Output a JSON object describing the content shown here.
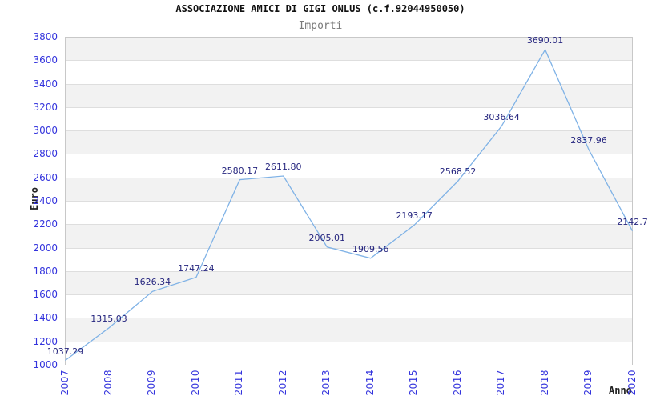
{
  "chart_data": {
    "type": "line",
    "title": "ASSOCIAZIONE AMICI DI GIGI ONLUS (c.f.92044950050)",
    "subtitle": "Importi",
    "xlabel": "Anno",
    "ylabel": "Euro",
    "categories": [
      "2007",
      "2008",
      "2009",
      "2010",
      "2011",
      "2012",
      "2013",
      "2014",
      "2015",
      "2016",
      "2017",
      "2018",
      "2019",
      "2020"
    ],
    "series": [
      {
        "name": "Importi",
        "values": [
          1037.29,
          1315.03,
          1626.34,
          1747.24,
          2580.17,
          2611.8,
          2005.01,
          1909.56,
          2193.17,
          2568.52,
          3036.64,
          3690.01,
          2837.96,
          2142.7
        ]
      }
    ],
    "point_labels": [
      "1037.29",
      "1315.03",
      "1626.34",
      "1747.24",
      "2580.17",
      "2611.80",
      "2005.01",
      "1909.56",
      "2193.17",
      "2568.52",
      "3036.64",
      "3690.01",
      "2837.96",
      "2142.7"
    ],
    "ylim": [
      1000,
      3800
    ],
    "ytick_interval": 200,
    "ytick_labels": [
      "3800",
      "3600",
      "3400",
      "3200",
      "3000",
      "2800",
      "2600",
      "2400",
      "2200",
      "2000",
      "1800",
      "1600",
      "1400",
      "1200",
      "1000"
    ],
    "grid": "horizontal",
    "legend": "none",
    "band_fill": "alternating",
    "colors": {
      "line": "#7fb2e6",
      "tick_text": "#3434dd",
      "point_label_text": "#26267f",
      "band_gray": "#f2f2f2",
      "gridline": "#dedede",
      "plot_border": "#c8c8c8",
      "title_text": "#111111",
      "subtitle_text": "#7a7a7a",
      "axis_title_text": "#222222"
    }
  }
}
